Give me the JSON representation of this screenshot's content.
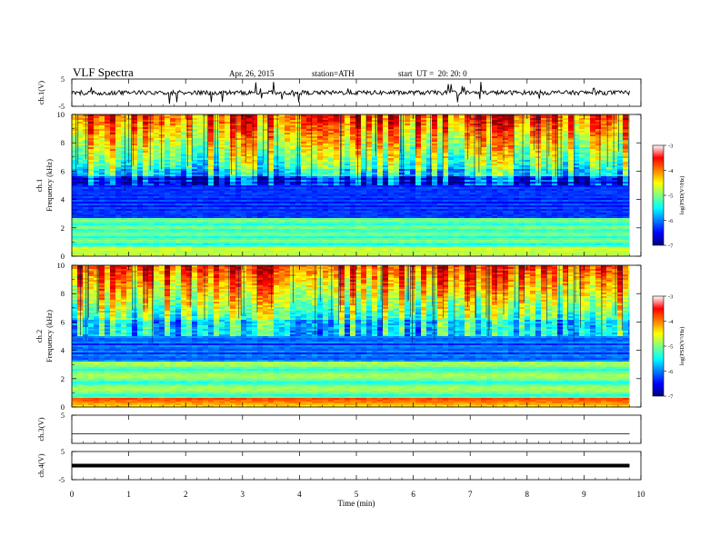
{
  "header": {
    "title": "VLF Spectra",
    "date": "Apr. 26, 2015",
    "station": "station=ATH",
    "start": "start  UT =  20: 20: 0"
  },
  "chart_data": [
    {
      "type": "line",
      "ylabel": "ch.1(V)",
      "ylim": [
        -5,
        5
      ],
      "yticks": [
        5,
        -5
      ],
      "description_level_v": 0,
      "x_range_min": [
        0,
        9.8
      ]
    },
    {
      "type": "heatmap",
      "ylabel_channel": "ch.1",
      "ylabel": "Frequency (kHz)",
      "ylim": [
        0,
        10
      ],
      "yticks": [
        0,
        2,
        4,
        6,
        8,
        10
      ],
      "colorbar": {
        "label": "log(PSD(V²/Hz)",
        "range": [
          -7,
          -3
        ],
        "ticks": [
          -3,
          -4,
          -5,
          -6,
          -7
        ]
      }
    },
    {
      "type": "heatmap",
      "ylabel_channel": "ch.2",
      "ylabel": "Frequency (kHz)",
      "ylim": [
        0,
        10
      ],
      "yticks": [
        0,
        2,
        4,
        6,
        8,
        10
      ],
      "colorbar": {
        "label": "log(PSD(V²/Hz)",
        "range": [
          -7,
          -3
        ],
        "ticks": [
          -3,
          -4,
          -5,
          -6,
          -7
        ]
      }
    },
    {
      "type": "line",
      "ylabel": "ch.3(V)",
      "ylim": [
        -5,
        5
      ],
      "yticks": [
        5
      ],
      "level_v": 0
    },
    {
      "type": "line",
      "ylabel": "ch.4(V)",
      "ylim": [
        -5,
        5
      ],
      "yticks": [
        5,
        -5
      ],
      "level_v": 0
    }
  ],
  "xaxis": {
    "label": "Time (min)",
    "ticks": [
      0,
      1,
      2,
      3,
      4,
      5,
      6,
      7,
      8,
      9,
      10
    ],
    "range": [
      0,
      10
    ]
  },
  "colors": {
    "trace": "#000000",
    "jet_low": "#00007f",
    "jet_high": "#ff0000"
  }
}
